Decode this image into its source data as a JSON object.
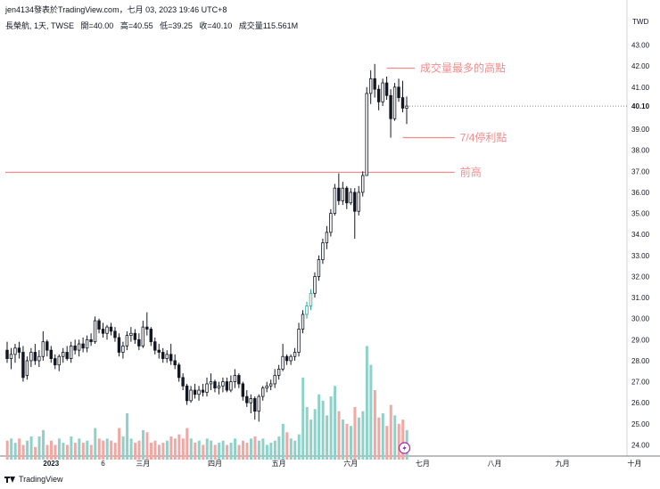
{
  "header": {
    "published": "jen4134發表於TradingView.com，七月 03, 2023 19:46 UTC+8",
    "symbol": "長榮航, 1天, TWSE",
    "open": "開=40.00",
    "high": "高=40.55",
    "low": "低=39.25",
    "close": "收=40.10",
    "volume": "成交量115.561M"
  },
  "footer": {
    "brand": "TradingView"
  },
  "colors": {
    "up": "#26a69a",
    "down": "#ef5350",
    "vol_up": "#8fd1c9",
    "vol_down": "#f0a8a5",
    "annotation": "#f28b8b",
    "candle": "#131722",
    "price_tag": "#131722"
  },
  "chart_data": {
    "type": "candlestick",
    "currency": "TWD",
    "ylim": [
      23.3,
      43.7
    ],
    "y_ticks": [
      "43.00",
      "42.00",
      "41.00",
      "40.10",
      "39.00",
      "38.00",
      "37.00",
      "36.00",
      "35.00",
      "34.00",
      "33.00",
      "32.00",
      "31.00",
      "30.00",
      "29.00",
      "28.00",
      "27.00",
      "26.00",
      "25.00",
      "24.00"
    ],
    "x_ticks": [
      {
        "label": "2023",
        "bar": 11
      },
      {
        "label": "6",
        "bar": 24
      },
      {
        "label": "三月",
        "bar": 34
      },
      {
        "label": "四月",
        "bar": 52
      },
      {
        "label": "五月",
        "bar": 68
      },
      {
        "label": "六月",
        "bar": 86
      },
      {
        "label": "七月",
        "bar": 104
      },
      {
        "label": "八月",
        "bar": 122
      },
      {
        "label": "九月",
        "bar": 139
      },
      {
        "label": "十月",
        "bar": 157
      }
    ],
    "last_price": "40.10",
    "lines": [
      {
        "price": 41.9,
        "from_bar": 95,
        "to_bar": 102,
        "label": "成交量最多的高點"
      },
      {
        "price": 38.6,
        "from_bar": 99,
        "to_bar": 112,
        "label": "7/4停利點"
      },
      {
        "price": 36.95,
        "from_bar": 0,
        "to_bar": 112,
        "label": "前高"
      }
    ],
    "ohlc": [
      [
        28.5,
        28.9,
        27.9,
        28.1
      ],
      [
        28.1,
        28.6,
        27.6,
        28.3
      ],
      [
        28.3,
        28.8,
        27.9,
        28.6
      ],
      [
        28.6,
        28.9,
        28.1,
        28.4
      ],
      [
        28.4,
        28.7,
        27.0,
        27.2
      ],
      [
        27.3,
        28.2,
        27.1,
        28.0
      ],
      [
        28.0,
        28.6,
        27.7,
        28.4
      ],
      [
        28.4,
        28.8,
        27.8,
        28.0
      ],
      [
        28.0,
        28.5,
        27.7,
        28.2
      ],
      [
        28.2,
        29.4,
        28.0,
        28.9
      ],
      [
        28.9,
        29.0,
        28.2,
        28.5
      ],
      [
        28.5,
        28.7,
        27.9,
        28.1
      ],
      [
        28.1,
        28.3,
        27.6,
        27.8
      ],
      [
        27.8,
        28.3,
        27.5,
        28.2
      ],
      [
        28.2,
        28.6,
        27.9,
        28.4
      ],
      [
        28.4,
        28.7,
        28.0,
        28.1
      ],
      [
        28.1,
        28.9,
        27.9,
        28.7
      ],
      [
        28.7,
        29.0,
        28.3,
        28.5
      ],
      [
        28.5,
        29.0,
        28.2,
        28.8
      ],
      [
        28.8,
        29.1,
        28.4,
        28.6
      ],
      [
        28.6,
        29.2,
        28.4,
        29.0
      ],
      [
        29.0,
        29.3,
        28.7,
        28.9
      ],
      [
        28.9,
        30.1,
        28.8,
        29.9
      ],
      [
        29.9,
        30.0,
        29.3,
        29.5
      ],
      [
        29.5,
        29.8,
        29.1,
        29.3
      ],
      [
        29.3,
        29.7,
        29.0,
        29.6
      ],
      [
        29.6,
        29.8,
        29.2,
        29.4
      ],
      [
        29.4,
        29.6,
        28.9,
        29.1
      ],
      [
        29.1,
        29.3,
        28.2,
        28.4
      ],
      [
        28.4,
        28.9,
        28.1,
        28.7
      ],
      [
        28.7,
        29.4,
        28.5,
        29.2
      ],
      [
        29.2,
        29.6,
        28.9,
        29.3
      ],
      [
        29.3,
        29.5,
        28.8,
        29.0
      ],
      [
        29.0,
        29.3,
        28.5,
        28.7
      ],
      [
        28.7,
        29.9,
        28.6,
        29.6
      ],
      [
        29.6,
        30.3,
        29.2,
        29.5
      ],
      [
        29.5,
        29.6,
        28.7,
        28.9
      ],
      [
        28.9,
        29.1,
        28.3,
        28.5
      ],
      [
        28.5,
        28.8,
        28.1,
        28.4
      ],
      [
        28.4,
        28.6,
        27.9,
        28.1
      ],
      [
        28.1,
        28.5,
        27.9,
        28.3
      ],
      [
        28.3,
        28.8,
        27.8,
        28.0
      ],
      [
        28.0,
        28.3,
        27.6,
        27.8
      ],
      [
        27.8,
        27.9,
        27.0,
        27.2
      ],
      [
        27.2,
        27.4,
        26.6,
        26.8
      ],
      [
        26.8,
        26.9,
        25.9,
        26.1
      ],
      [
        26.1,
        26.8,
        26.0,
        26.6
      ],
      [
        26.6,
        26.9,
        26.2,
        26.4
      ],
      [
        26.4,
        26.8,
        26.1,
        26.6
      ],
      [
        26.6,
        26.9,
        26.3,
        26.5
      ],
      [
        26.5,
        27.2,
        26.3,
        26.9
      ],
      [
        26.9,
        27.4,
        26.6,
        27.0
      ],
      [
        27.0,
        27.1,
        26.5,
        26.7
      ],
      [
        26.7,
        27.0,
        26.4,
        26.8
      ],
      [
        26.8,
        27.2,
        26.5,
        27.0
      ],
      [
        27.0,
        27.2,
        26.5,
        26.6
      ],
      [
        26.6,
        27.3,
        26.5,
        27.0
      ],
      [
        27.0,
        27.6,
        26.7,
        27.3
      ],
      [
        27.3,
        27.4,
        26.7,
        26.9
      ],
      [
        26.9,
        27.0,
        26.1,
        26.3
      ],
      [
        26.3,
        26.6,
        25.8,
        26.0
      ],
      [
        26.0,
        26.4,
        25.5,
        26.2
      ],
      [
        26.2,
        26.3,
        25.2,
        25.6
      ],
      [
        25.6,
        26.4,
        25.1,
        26.3
      ],
      [
        26.3,
        26.8,
        26.1,
        26.7
      ],
      [
        26.7,
        27.0,
        26.5,
        26.8
      ],
      [
        26.8,
        27.1,
        26.6,
        26.9
      ],
      [
        26.9,
        27.6,
        26.7,
        27.3
      ],
      [
        27.3,
        27.8,
        27.1,
        27.6
      ],
      [
        27.6,
        28.8,
        27.5,
        28.2
      ],
      [
        28.2,
        28.3,
        27.8,
        28.0
      ],
      [
        28.0,
        28.3,
        27.8,
        28.2
      ],
      [
        28.2,
        28.6,
        28.0,
        28.4
      ],
      [
        28.4,
        29.8,
        28.2,
        29.5
      ],
      [
        29.5,
        30.4,
        29.3,
        30.2
      ],
      [
        30.2,
        30.8,
        30.0,
        30.6
      ],
      [
        30.6,
        31.4,
        30.4,
        31.2
      ],
      [
        31.2,
        32.2,
        31.0,
        32.0
      ],
      [
        32.0,
        33.0,
        31.8,
        32.8
      ],
      [
        32.8,
        33.8,
        32.6,
        33.6
      ],
      [
        33.6,
        34.4,
        33.3,
        34.1
      ],
      [
        34.1,
        35.2,
        33.9,
        35.0
      ],
      [
        35.0,
        36.4,
        34.9,
        36.2
      ],
      [
        36.2,
        36.9,
        35.4,
        35.6
      ],
      [
        35.6,
        36.5,
        35.4,
        36.2
      ],
      [
        36.2,
        36.3,
        35.2,
        35.5
      ],
      [
        35.5,
        36.2,
        35.4,
        36.0
      ],
      [
        36.0,
        36.2,
        33.8,
        35.1
      ],
      [
        35.1,
        36.3,
        34.9,
        36.0
      ],
      [
        36.0,
        37.0,
        35.8,
        36.8
      ],
      [
        36.8,
        41.0,
        36.8,
        40.7
      ],
      [
        40.7,
        41.8,
        40.2,
        41.4
      ],
      [
        41.4,
        42.1,
        40.5,
        40.9
      ],
      [
        40.9,
        41.1,
        39.9,
        40.3
      ],
      [
        40.3,
        41.4,
        40.1,
        41.2
      ],
      [
        41.2,
        41.5,
        40.4,
        40.6
      ],
      [
        40.6,
        40.9,
        38.6,
        39.5
      ],
      [
        39.5,
        41.2,
        39.4,
        41.0
      ],
      [
        41.0,
        41.4,
        40.3,
        40.5
      ],
      [
        40.5,
        41.3,
        39.8,
        40.0
      ],
      [
        40.0,
        40.55,
        39.25,
        40.1
      ]
    ],
    "volume": [
      [
        24.2,
        0
      ],
      [
        24.3,
        1
      ],
      [
        24.1,
        1
      ],
      [
        24.3,
        0
      ],
      [
        24.0,
        0
      ],
      [
        24.2,
        1
      ],
      [
        24.4,
        1
      ],
      [
        23.9,
        0
      ],
      [
        24.4,
        1
      ],
      [
        24.7,
        1
      ],
      [
        24.0,
        0
      ],
      [
        24.2,
        0
      ],
      [
        24.0,
        0
      ],
      [
        24.3,
        1
      ],
      [
        24.1,
        1
      ],
      [
        24.0,
        0
      ],
      [
        24.4,
        1
      ],
      [
        24.1,
        0
      ],
      [
        24.3,
        1
      ],
      [
        24.1,
        0
      ],
      [
        24.2,
        1
      ],
      [
        24.0,
        0
      ],
      [
        24.8,
        1
      ],
      [
        24.3,
        0
      ],
      [
        24.2,
        0
      ],
      [
        24.3,
        1
      ],
      [
        24.2,
        0
      ],
      [
        24.1,
        0
      ],
      [
        24.8,
        0
      ],
      [
        24.4,
        1
      ],
      [
        25.5,
        1
      ],
      [
        24.3,
        1
      ],
      [
        24.1,
        0
      ],
      [
        24.2,
        0
      ],
      [
        24.7,
        1
      ],
      [
        24.6,
        0
      ],
      [
        24.1,
        0
      ],
      [
        24.2,
        0
      ],
      [
        24.0,
        0
      ],
      [
        24.1,
        0
      ],
      [
        24.2,
        1
      ],
      [
        24.4,
        0
      ],
      [
        24.3,
        0
      ],
      [
        24.5,
        0
      ],
      [
        24.3,
        0
      ],
      [
        24.8,
        0
      ],
      [
        24.3,
        1
      ],
      [
        24.1,
        0
      ],
      [
        24.2,
        1
      ],
      [
        24.0,
        0
      ],
      [
        24.3,
        1
      ],
      [
        24.2,
        1
      ],
      [
        24.0,
        0
      ],
      [
        24.1,
        1
      ],
      [
        24.2,
        1
      ],
      [
        24.0,
        0
      ],
      [
        24.1,
        1
      ],
      [
        24.3,
        1
      ],
      [
        24.0,
        0
      ],
      [
        24.2,
        0
      ],
      [
        24.1,
        0
      ],
      [
        24.3,
        1
      ],
      [
        24.4,
        0
      ],
      [
        24.2,
        1
      ],
      [
        24.3,
        1
      ],
      [
        24.0,
        1
      ],
      [
        24.1,
        1
      ],
      [
        24.2,
        1
      ],
      [
        24.4,
        1
      ],
      [
        25.0,
        1
      ],
      [
        24.6,
        0
      ],
      [
        24.3,
        1
      ],
      [
        24.2,
        1
      ],
      [
        24.5,
        1
      ],
      [
        27.2,
        1
      ],
      [
        25.8,
        1
      ],
      [
        25.2,
        1
      ],
      [
        25.7,
        1
      ],
      [
        26.4,
        1
      ],
      [
        26.1,
        1
      ],
      [
        25.4,
        1
      ],
      [
        26.3,
        1
      ],
      [
        26.8,
        1
      ],
      [
        25.6,
        0
      ],
      [
        25.2,
        1
      ],
      [
        25.0,
        0
      ],
      [
        24.9,
        1
      ],
      [
        25.8,
        0
      ],
      [
        25.3,
        1
      ],
      [
        25.6,
        1
      ],
      [
        28.7,
        1
      ],
      [
        27.8,
        1
      ],
      [
        26.6,
        0
      ],
      [
        25.3,
        0
      ],
      [
        25.5,
        1
      ],
      [
        24.9,
        0
      ],
      [
        25.9,
        0
      ],
      [
        25.4,
        1
      ],
      [
        25.0,
        0
      ],
      [
        25.2,
        0
      ],
      [
        24.7,
        1
      ]
    ]
  }
}
